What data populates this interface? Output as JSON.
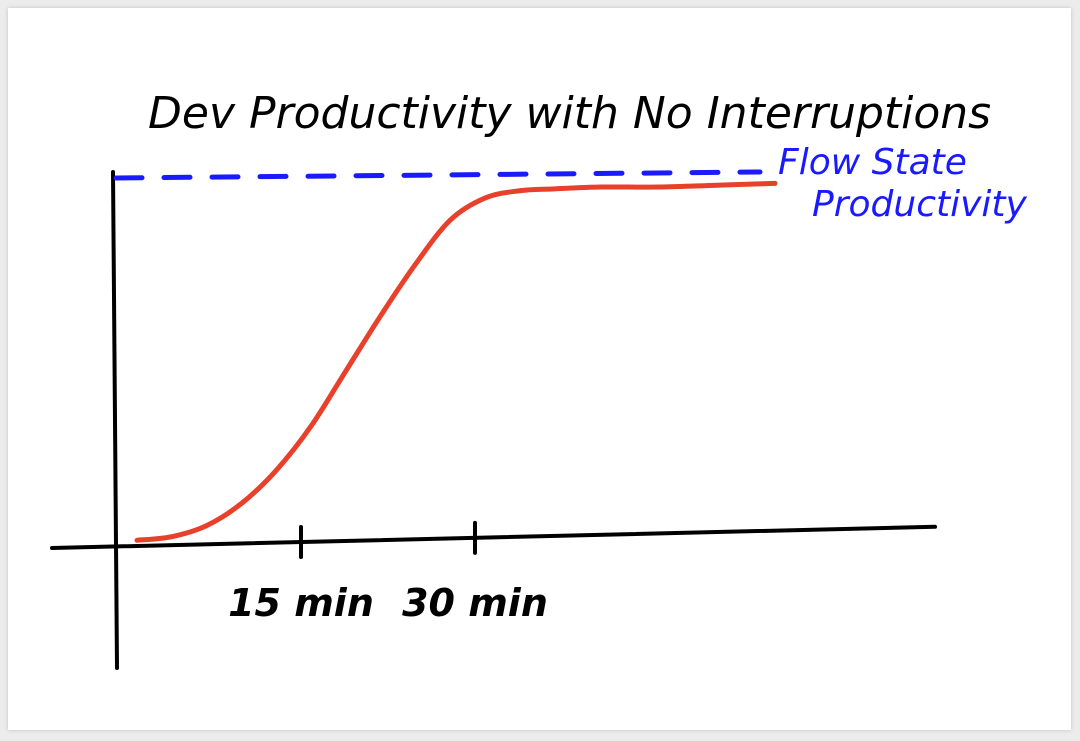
{
  "chart_data": {
    "type": "line",
    "title": "Dev Productivity with No Interruptions",
    "xlabel": "",
    "ylabel": "",
    "x_ticks": [
      {
        "value": 15,
        "label": "15 min"
      },
      {
        "value": 30,
        "label": "30 min"
      }
    ],
    "xlim": [
      0,
      70
    ],
    "ylim": [
      0,
      1
    ],
    "reference_line": {
      "label": "Flow State Productivity",
      "label_lines": [
        "Flow State",
        "Productivity"
      ],
      "y": 1.0,
      "style": "dashed",
      "color": "#1a1aff"
    },
    "series": [
      {
        "color": "#e8402a",
        "x": [
          0,
          3,
          6,
          9,
          12,
          15,
          18,
          21,
          24,
          27,
          30,
          33,
          36,
          40,
          45,
          50,
          55
        ],
        "y": [
          0.01,
          0.02,
          0.05,
          0.11,
          0.2,
          0.32,
          0.47,
          0.62,
          0.76,
          0.88,
          0.94,
          0.96,
          0.965,
          0.97,
          0.97,
          0.975,
          0.98
        ]
      }
    ],
    "grid": false,
    "legend": "none"
  },
  "colors": {
    "axis": "#000000",
    "curve": "#e8402a",
    "flow": "#1a1aff",
    "background": "#ffffff"
  }
}
